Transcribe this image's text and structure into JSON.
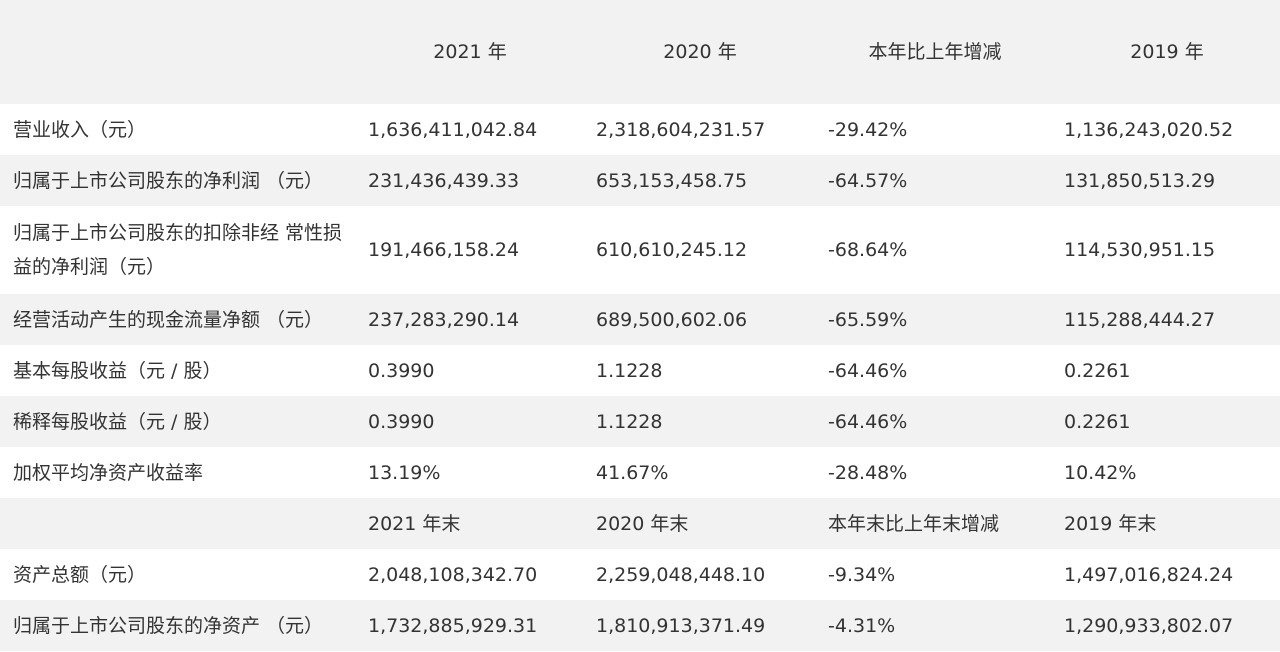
{
  "header": [
    "",
    "2021 年",
    "2020 年",
    "本年比上年增减",
    "2019 年"
  ],
  "rows": [
    [
      "营业收入（元）",
      "1,636,411,042.84",
      "2,318,604,231.57",
      "-29.42%",
      "1,136,243,020.52"
    ],
    [
      "归属于上市公司股东的净利润 （元）",
      "231,436,439.33",
      "653,153,458.75",
      "-64.57%",
      "131,850,513.29"
    ],
    [
      "归属于上市公司股东的扣除非经 常性损益的净利润（元）",
      "191,466,158.24",
      "610,610,245.12",
      "-68.64%",
      "114,530,951.15"
    ],
    [
      "经营活动产生的现金流量净额 （元）",
      "237,283,290.14",
      "689,500,602.06",
      "-65.59%",
      "115,288,444.27"
    ],
    [
      "基本每股收益（元 / 股）",
      "0.3990",
      "1.1228",
      "-64.46%",
      "0.2261"
    ],
    [
      "稀释每股收益（元 / 股）",
      "0.3990",
      "1.1228",
      "-64.46%",
      "0.2261"
    ],
    [
      "加权平均净资产收益率",
      "13.19%",
      "41.67%",
      "-28.48%",
      "10.42%"
    ],
    [
      "",
      "2021 年末",
      "2020 年末",
      "本年末比上年末增减",
      "2019 年末"
    ],
    [
      "资产总额（元）",
      "2,048,108,342.70",
      "2,259,048,448.10",
      "-9.34%",
      "1,497,016,824.24"
    ],
    [
      "归属于上市公司股东的净资产 （元）",
      "1,732,885,929.31",
      "1,810,913,371.49",
      "-4.31%",
      "1,290,933,802.07"
    ]
  ]
}
